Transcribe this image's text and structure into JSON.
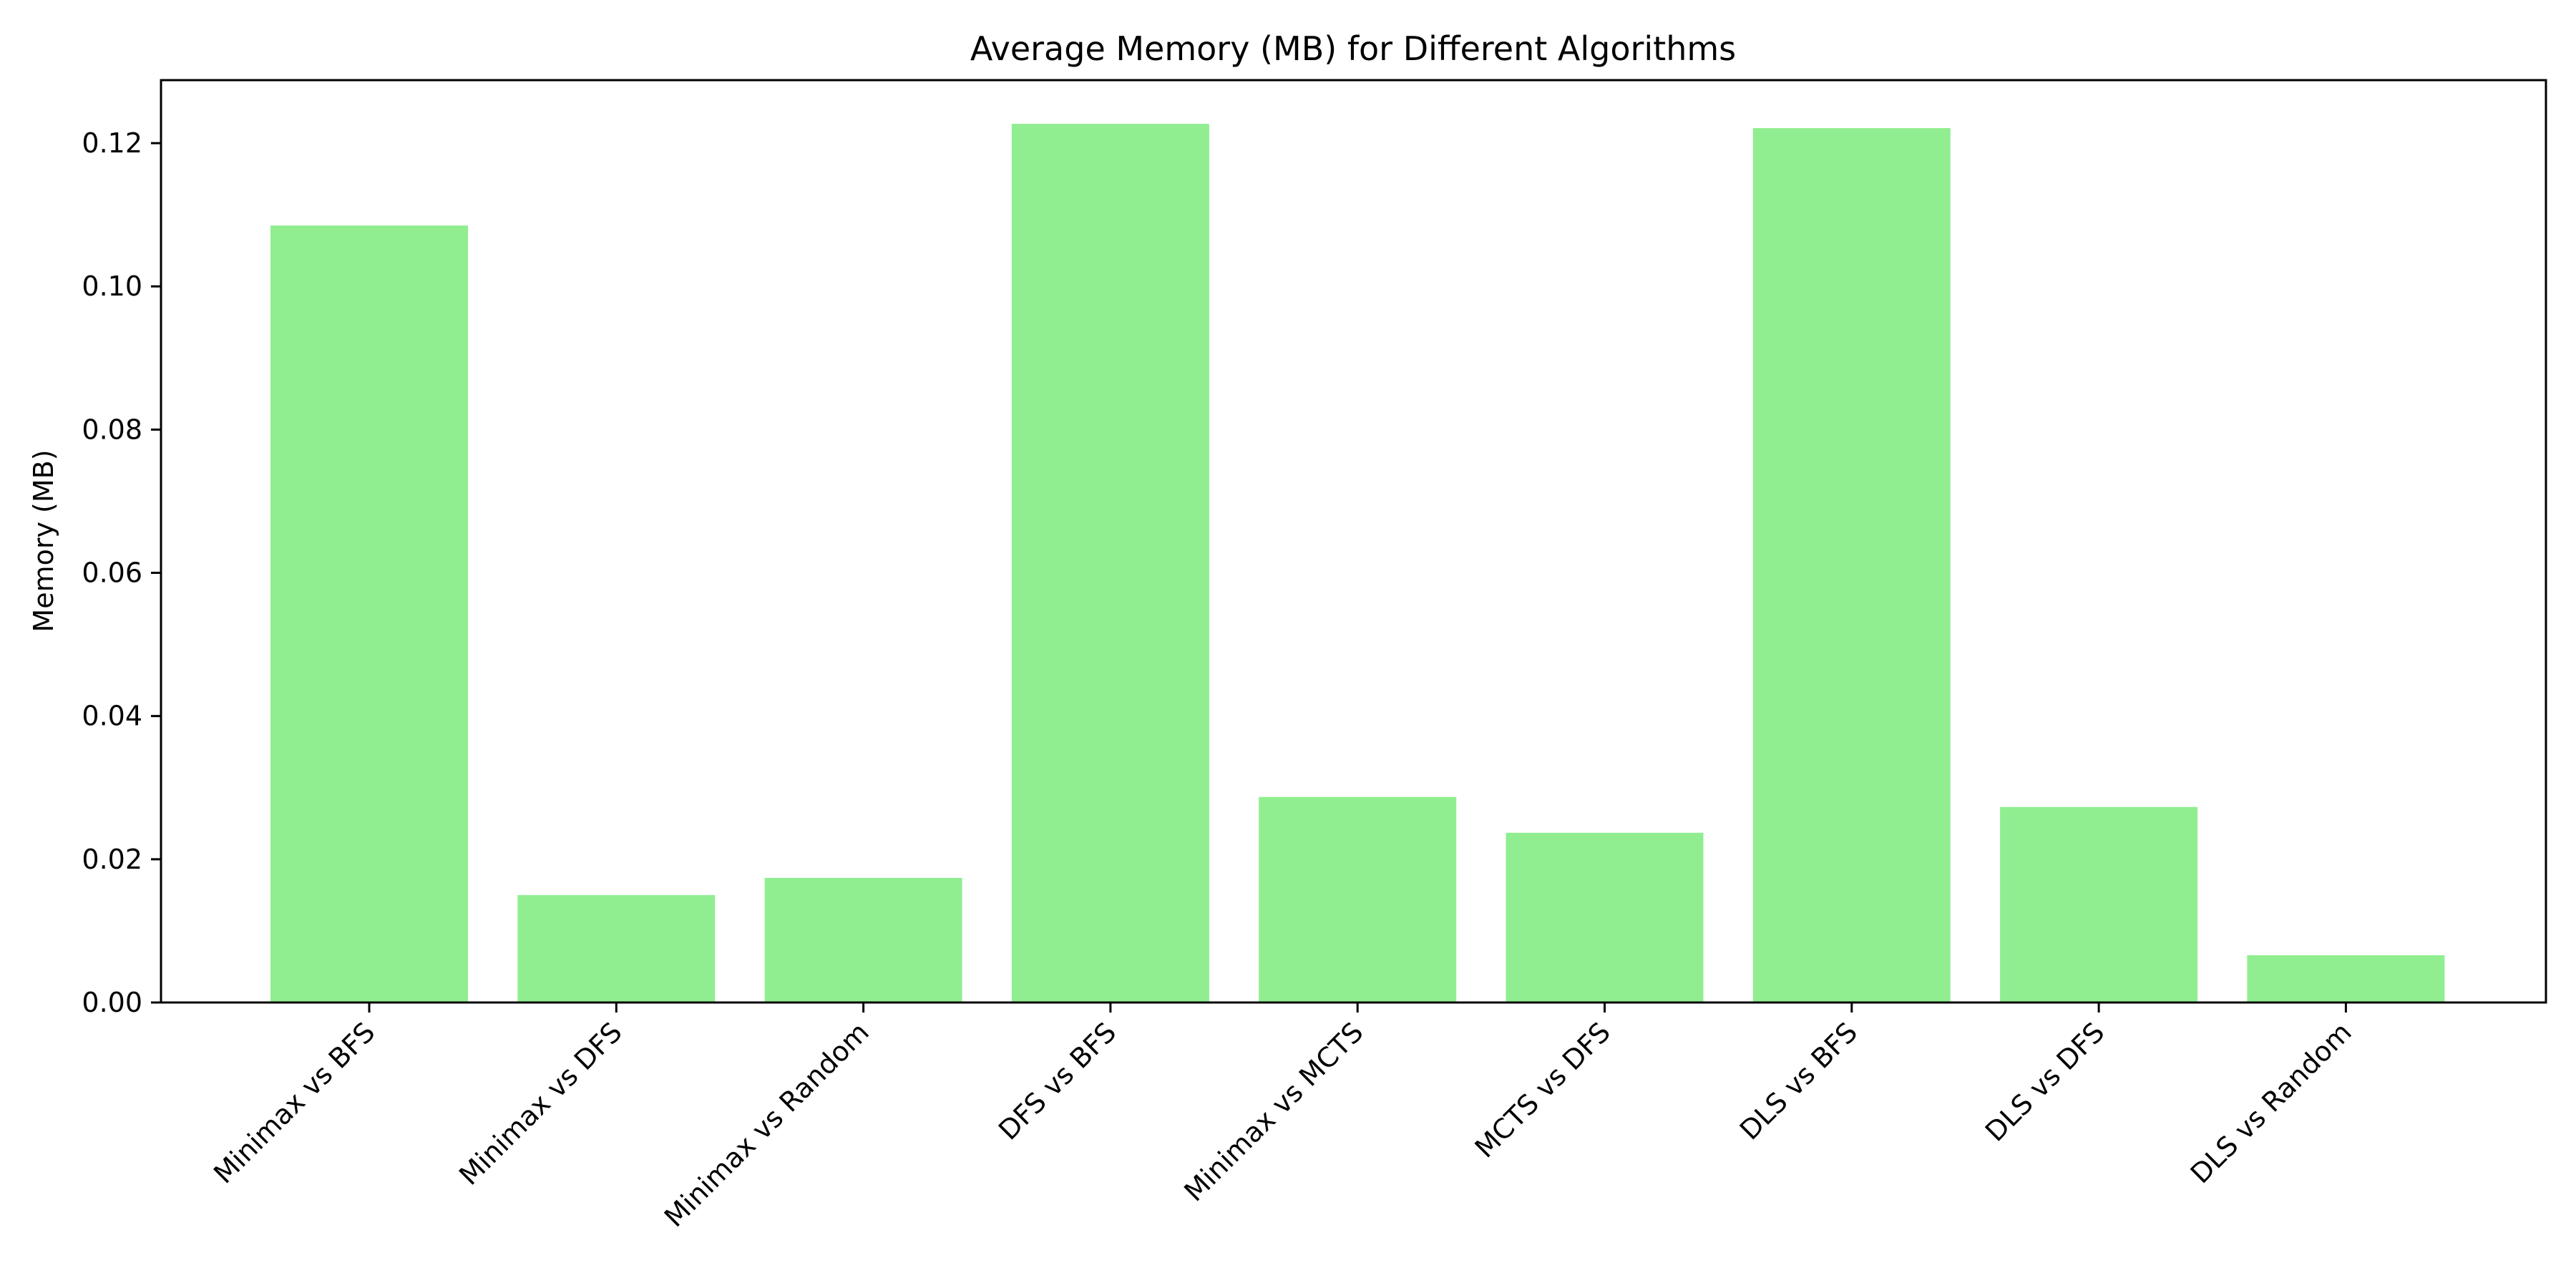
{
  "chart_data": {
    "type": "bar",
    "title": "Average Memory (MB) for Different Algorithms",
    "xlabel": "",
    "ylabel": "Memory (MB)",
    "categories": [
      "Minimax vs BFS",
      "Minimax vs DFS",
      "Minimax vs Random",
      "DFS vs BFS",
      "Minimax vs MCTS",
      "MCTS vs DFS",
      "DLS vs BFS",
      "DLS vs DFS",
      "DLS vs Random"
    ],
    "values": [
      0.1085,
      0.015,
      0.0174,
      0.1227,
      0.0287,
      0.0237,
      0.1221,
      0.0273,
      0.0066
    ],
    "ylim": [
      0,
      0.1288
    ],
    "yticks": [
      0.0,
      0.02,
      0.04,
      0.06,
      0.08,
      0.1,
      0.12
    ],
    "ytick_labels": [
      "0.00",
      "0.02",
      "0.04",
      "0.06",
      "0.08",
      "0.10",
      "0.12"
    ],
    "bar_color": "#90ee90",
    "grid": false,
    "legend": "none"
  }
}
